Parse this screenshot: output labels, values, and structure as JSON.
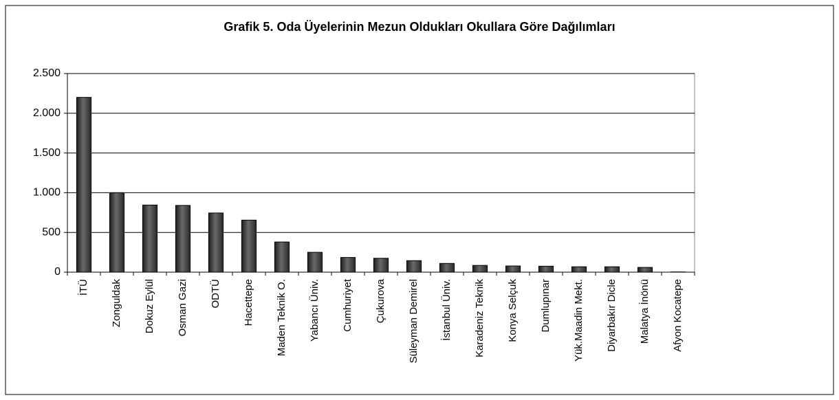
{
  "chart_data": {
    "type": "bar",
    "title": "Grafik 5. Oda Üyelerinin Mezun Oldukları Okullara Göre Dağılımları",
    "categories": [
      "İTÜ",
      "Zonguldak",
      "Dokuz Eylül",
      "Osman Gazi",
      "ODTÜ",
      "Hacettepe",
      "Maden Teknik O.",
      "Yabancı Üniv.",
      "Cumhuriyet",
      "Çukurova",
      "Süleyman Demirel",
      "İstanbul Üniv.",
      "Karadeniz Teknik",
      "Konya Selçuk",
      "Dumlupınar",
      "Yük.Maadin Mekt.",
      "Diyarbakır Dicle",
      "Malatya İnönü",
      "Afyon Kocatepe"
    ],
    "values": [
      2200,
      1000,
      845,
      840,
      745,
      655,
      380,
      250,
      185,
      175,
      145,
      110,
      85,
      78,
      75,
      68,
      68,
      60,
      3
    ],
    "color": "#3a3a3a",
    "ylim": [
      0,
      2500
    ],
    "yticks": [
      0,
      500,
      {
        "value": 1000,
        "label": "1.000"
      },
      {
        "value": 1500,
        "label": "1.500"
      },
      {
        "value": 2000,
        "label": "2.000"
      },
      {
        "value": 2500,
        "label": "2.500"
      }
    ],
    "grid": true
  }
}
